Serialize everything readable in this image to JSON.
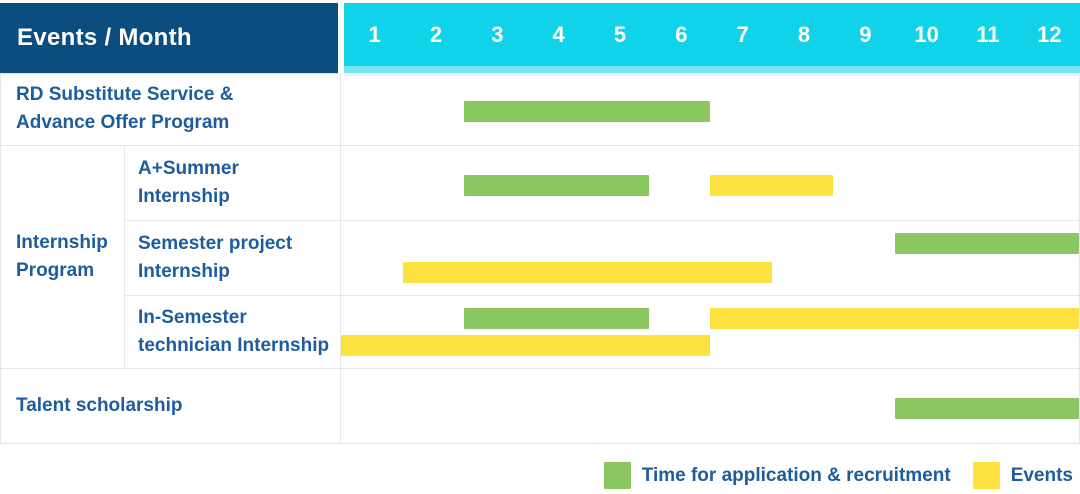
{
  "header": {
    "title": "Events / Month",
    "months": [
      "1",
      "2",
      "3",
      "4",
      "5",
      "6",
      "7",
      "8",
      "9",
      "10",
      "11",
      "12"
    ]
  },
  "colors": {
    "header_bg": "#0c4d7f",
    "months_bg": "#10d3e9",
    "header_text": "#ffffff",
    "label_text": "#1e5c9e",
    "application_green": "#8cc663",
    "events_yellow": "#fde23f",
    "grid_line": "#e9e9e9",
    "row_border": "#e6e6e6"
  },
  "legend": {
    "items": [
      {
        "label": "Time for application & recruitment",
        "type": "application",
        "color": "#8cc663"
      },
      {
        "label": "Events",
        "type": "events",
        "color": "#fde23f"
      }
    ]
  },
  "chart_data": {
    "type": "bar",
    "subtype": "gantt-schedule",
    "title": "Events / Month",
    "x_axis": {
      "label": "Month",
      "ticks": [
        "1",
        "2",
        "3",
        "4",
        "5",
        "6",
        "7",
        "8",
        "9",
        "10",
        "11",
        "12"
      ],
      "range": [
        1,
        12
      ]
    },
    "legend_entries": [
      "Time for application & recruitment",
      "Events"
    ],
    "group": {
      "label": "Internship\nProgram",
      "applies_to_row_indexes": [
        1,
        2,
        3
      ]
    },
    "rows": [
      {
        "label": "RD Substitute Service &\nAdvance Offer Program",
        "bars": [
          {
            "type": "application",
            "series": "Time for application & recruitment",
            "start_month": 3,
            "end_month": 6,
            "track": "center"
          }
        ]
      },
      {
        "label": "A+Summer\nInternship",
        "bars": [
          {
            "type": "application",
            "series": "Time for application & recruitment",
            "start_month": 3,
            "end_month": 5,
            "track": "center"
          },
          {
            "type": "events",
            "series": "Events",
            "start_month": 7,
            "end_month": 8,
            "track": "center"
          }
        ]
      },
      {
        "label": "Semester project\nInternship",
        "bars": [
          {
            "type": "application",
            "series": "Time for application & recruitment",
            "start_month": 10,
            "end_month": 12,
            "track": "top"
          },
          {
            "type": "events",
            "series": "Events",
            "start_month": 2,
            "end_month": 7,
            "track": "bottom"
          }
        ]
      },
      {
        "label": "In-Semester\ntechnician Internship",
        "bars": [
          {
            "type": "application",
            "series": "Time for application & recruitment",
            "start_month": 3,
            "end_month": 5,
            "track": "top"
          },
          {
            "type": "events",
            "series": "Events",
            "start_month": 7,
            "end_month": 12,
            "track": "top"
          },
          {
            "type": "events",
            "series": "Events",
            "start_month": 1,
            "end_month": 6,
            "track": "bottom"
          }
        ]
      },
      {
        "label": "Talent scholarship",
        "bars": [
          {
            "type": "application",
            "series": "Time for application & recruitment",
            "start_month": 10,
            "end_month": 12,
            "track": "center"
          }
        ]
      }
    ]
  }
}
